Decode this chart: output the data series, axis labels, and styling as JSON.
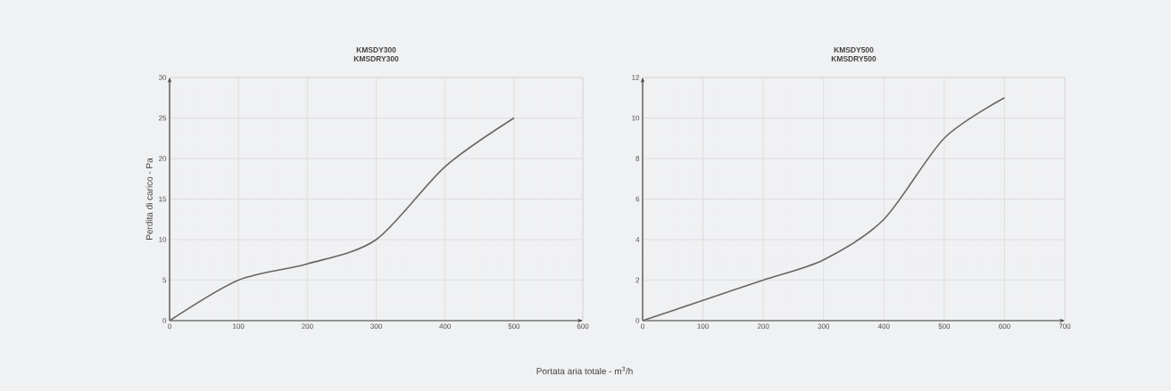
{
  "chart_data": [
    {
      "type": "line",
      "title": "KMSDY300",
      "subtitle": "KMSDRY300",
      "xlabel": "Portata aria totale - m$^{3}$/h",
      "ylabel": "Perdita di carico - Pa",
      "x": [
        0,
        100,
        200,
        300,
        400,
        500
      ],
      "series": [
        {
          "color": "#666666",
          "values": [
            0,
            5,
            7,
            10,
            19,
            25
          ]
        }
      ],
      "xlim": [
        0,
        600
      ],
      "xticks": [
        0,
        100,
        200,
        300,
        400,
        500,
        600
      ],
      "ylim": [
        0,
        30
      ],
      "yticks": [
        0,
        5,
        10,
        15,
        20,
        25,
        30
      ],
      "grid": true,
      "marker": "none",
      "line_style": "solid"
    },
    {
      "type": "line",
      "title": "KMSDY500",
      "subtitle": "KMSDRY500",
      "x": [
        0,
        100,
        200,
        300,
        400,
        500,
        600
      ],
      "series": [
        {
          "color": "#666666",
          "values": [
            0,
            1,
            2,
            3,
            5,
            9,
            11
          ]
        }
      ],
      "xlim": [
        0,
        700
      ],
      "xticks": [
        0,
        100,
        200,
        300,
        400,
        500,
        600,
        700
      ],
      "ylim": [
        0,
        12
      ],
      "yticks": [
        0,
        2,
        4,
        6,
        8,
        10,
        12
      ],
      "grid": true,
      "marker": "none",
      "line_style": "solid"
    }
  ]
}
